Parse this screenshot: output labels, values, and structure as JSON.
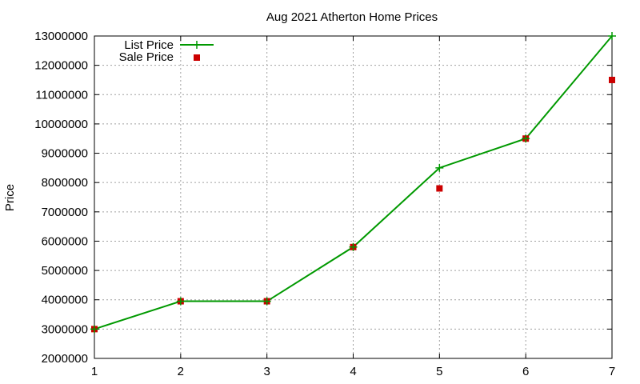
{
  "chart_data": {
    "type": "line",
    "title": "Aug 2021 Atherton Home Prices",
    "xlabel": "",
    "ylabel": "Price",
    "x": [
      1,
      2,
      3,
      4,
      5,
      6,
      7
    ],
    "xlim": [
      1,
      7
    ],
    "ylim": [
      2000000,
      13000000
    ],
    "x_ticks": [
      "1",
      "2",
      "3",
      "4",
      "5",
      "6",
      "7"
    ],
    "y_ticks": [
      "2000000",
      "3000000",
      "4000000",
      "5000000",
      "6000000",
      "7000000",
      "8000000",
      "9000000",
      "10000000",
      "11000000",
      "12000000",
      "13000000"
    ],
    "grid": true,
    "legend_position": "top-left",
    "series": [
      {
        "name": "List Price",
        "style": "line with plus markers",
        "color": "#009900",
        "values": [
          3000000,
          3950000,
          3950000,
          5800000,
          8500000,
          9500000,
          13000000
        ]
      },
      {
        "name": "Sale Price",
        "style": "square points",
        "color": "#cc0000",
        "values": [
          3000000,
          3950000,
          3950000,
          5800000,
          7800000,
          9500000,
          11500000
        ]
      }
    ]
  }
}
